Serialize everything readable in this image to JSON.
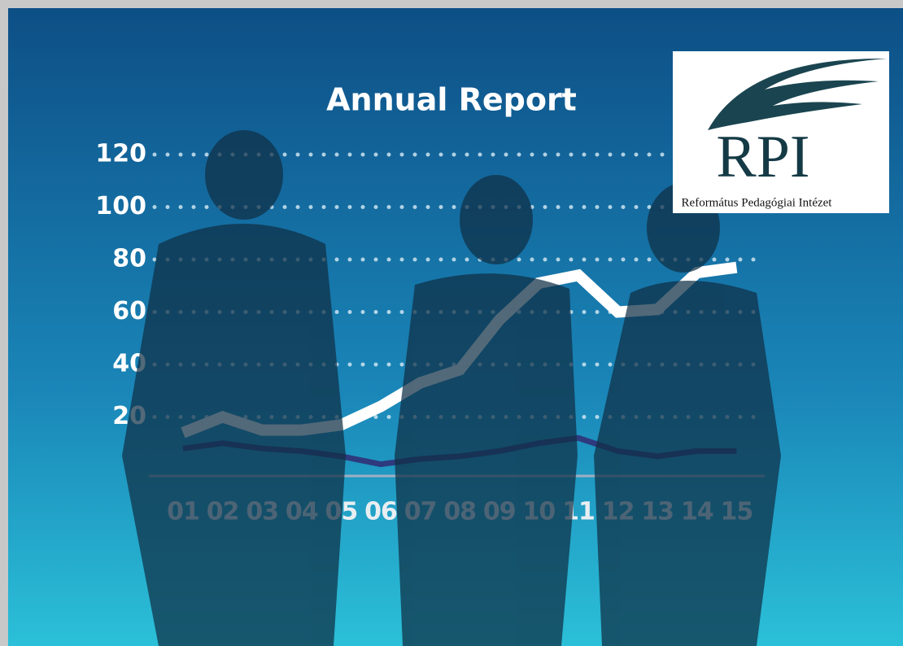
{
  "chart_data": {
    "type": "line",
    "title": "Annual Report",
    "categories": [
      "01",
      "02",
      "03",
      "04",
      "05",
      "06",
      "07",
      "08",
      "09",
      "10",
      "11",
      "12",
      "13",
      "14",
      "15"
    ],
    "series": [
      {
        "color": "#ffffff",
        "values": [
          14,
          20,
          15,
          15,
          17,
          24,
          33,
          38,
          57,
          71,
          74,
          60,
          61,
          75,
          77
        ]
      },
      {
        "color": "#2e3a7e",
        "values": [
          8,
          10,
          8,
          7,
          5,
          2,
          4,
          5,
          7,
          10,
          12,
          7,
          5,
          7,
          7
        ]
      }
    ],
    "ylim": [
      0,
      120
    ],
    "yticks": [
      20,
      40,
      60,
      80,
      100,
      120
    ],
    "grid": true
  },
  "logo": {
    "title": "RPI",
    "subtitle": "Református Pedagógiai Intézet"
  }
}
